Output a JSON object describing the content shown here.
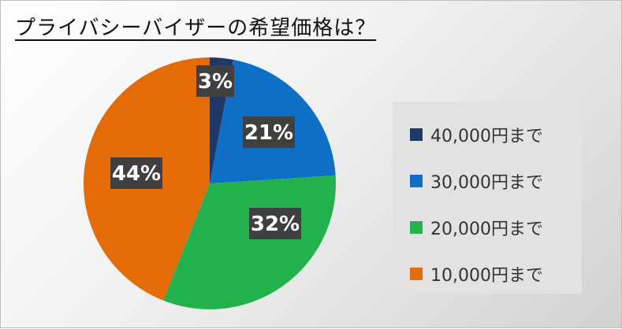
{
  "title": "プライバシーバイザーの希望価格は？",
  "chart_data": {
    "type": "pie",
    "title": "プライバシーバイザーの希望価格は？",
    "categories": [
      "40,000円まで",
      "30,000円まで",
      "20,000円まで",
      "10,000円まで"
    ],
    "values": [
      3,
      21,
      32,
      44
    ],
    "labels": [
      "3%",
      "21%",
      "32%",
      "44%"
    ],
    "colors": [
      "#1f3864",
      "#0f6fc6",
      "#22b14c",
      "#e36c09"
    ],
    "start_angle": "12 o'clock, clockwise",
    "legend_position": "right"
  },
  "legend": {
    "items": [
      {
        "label": "40,000円まで",
        "color": "#1f3864"
      },
      {
        "label": "30,000円まで",
        "color": "#0f6fc6"
      },
      {
        "label": "20,000円まで",
        "color": "#22b14c"
      },
      {
        "label": "10,000円まで",
        "color": "#e36c09"
      }
    ]
  }
}
